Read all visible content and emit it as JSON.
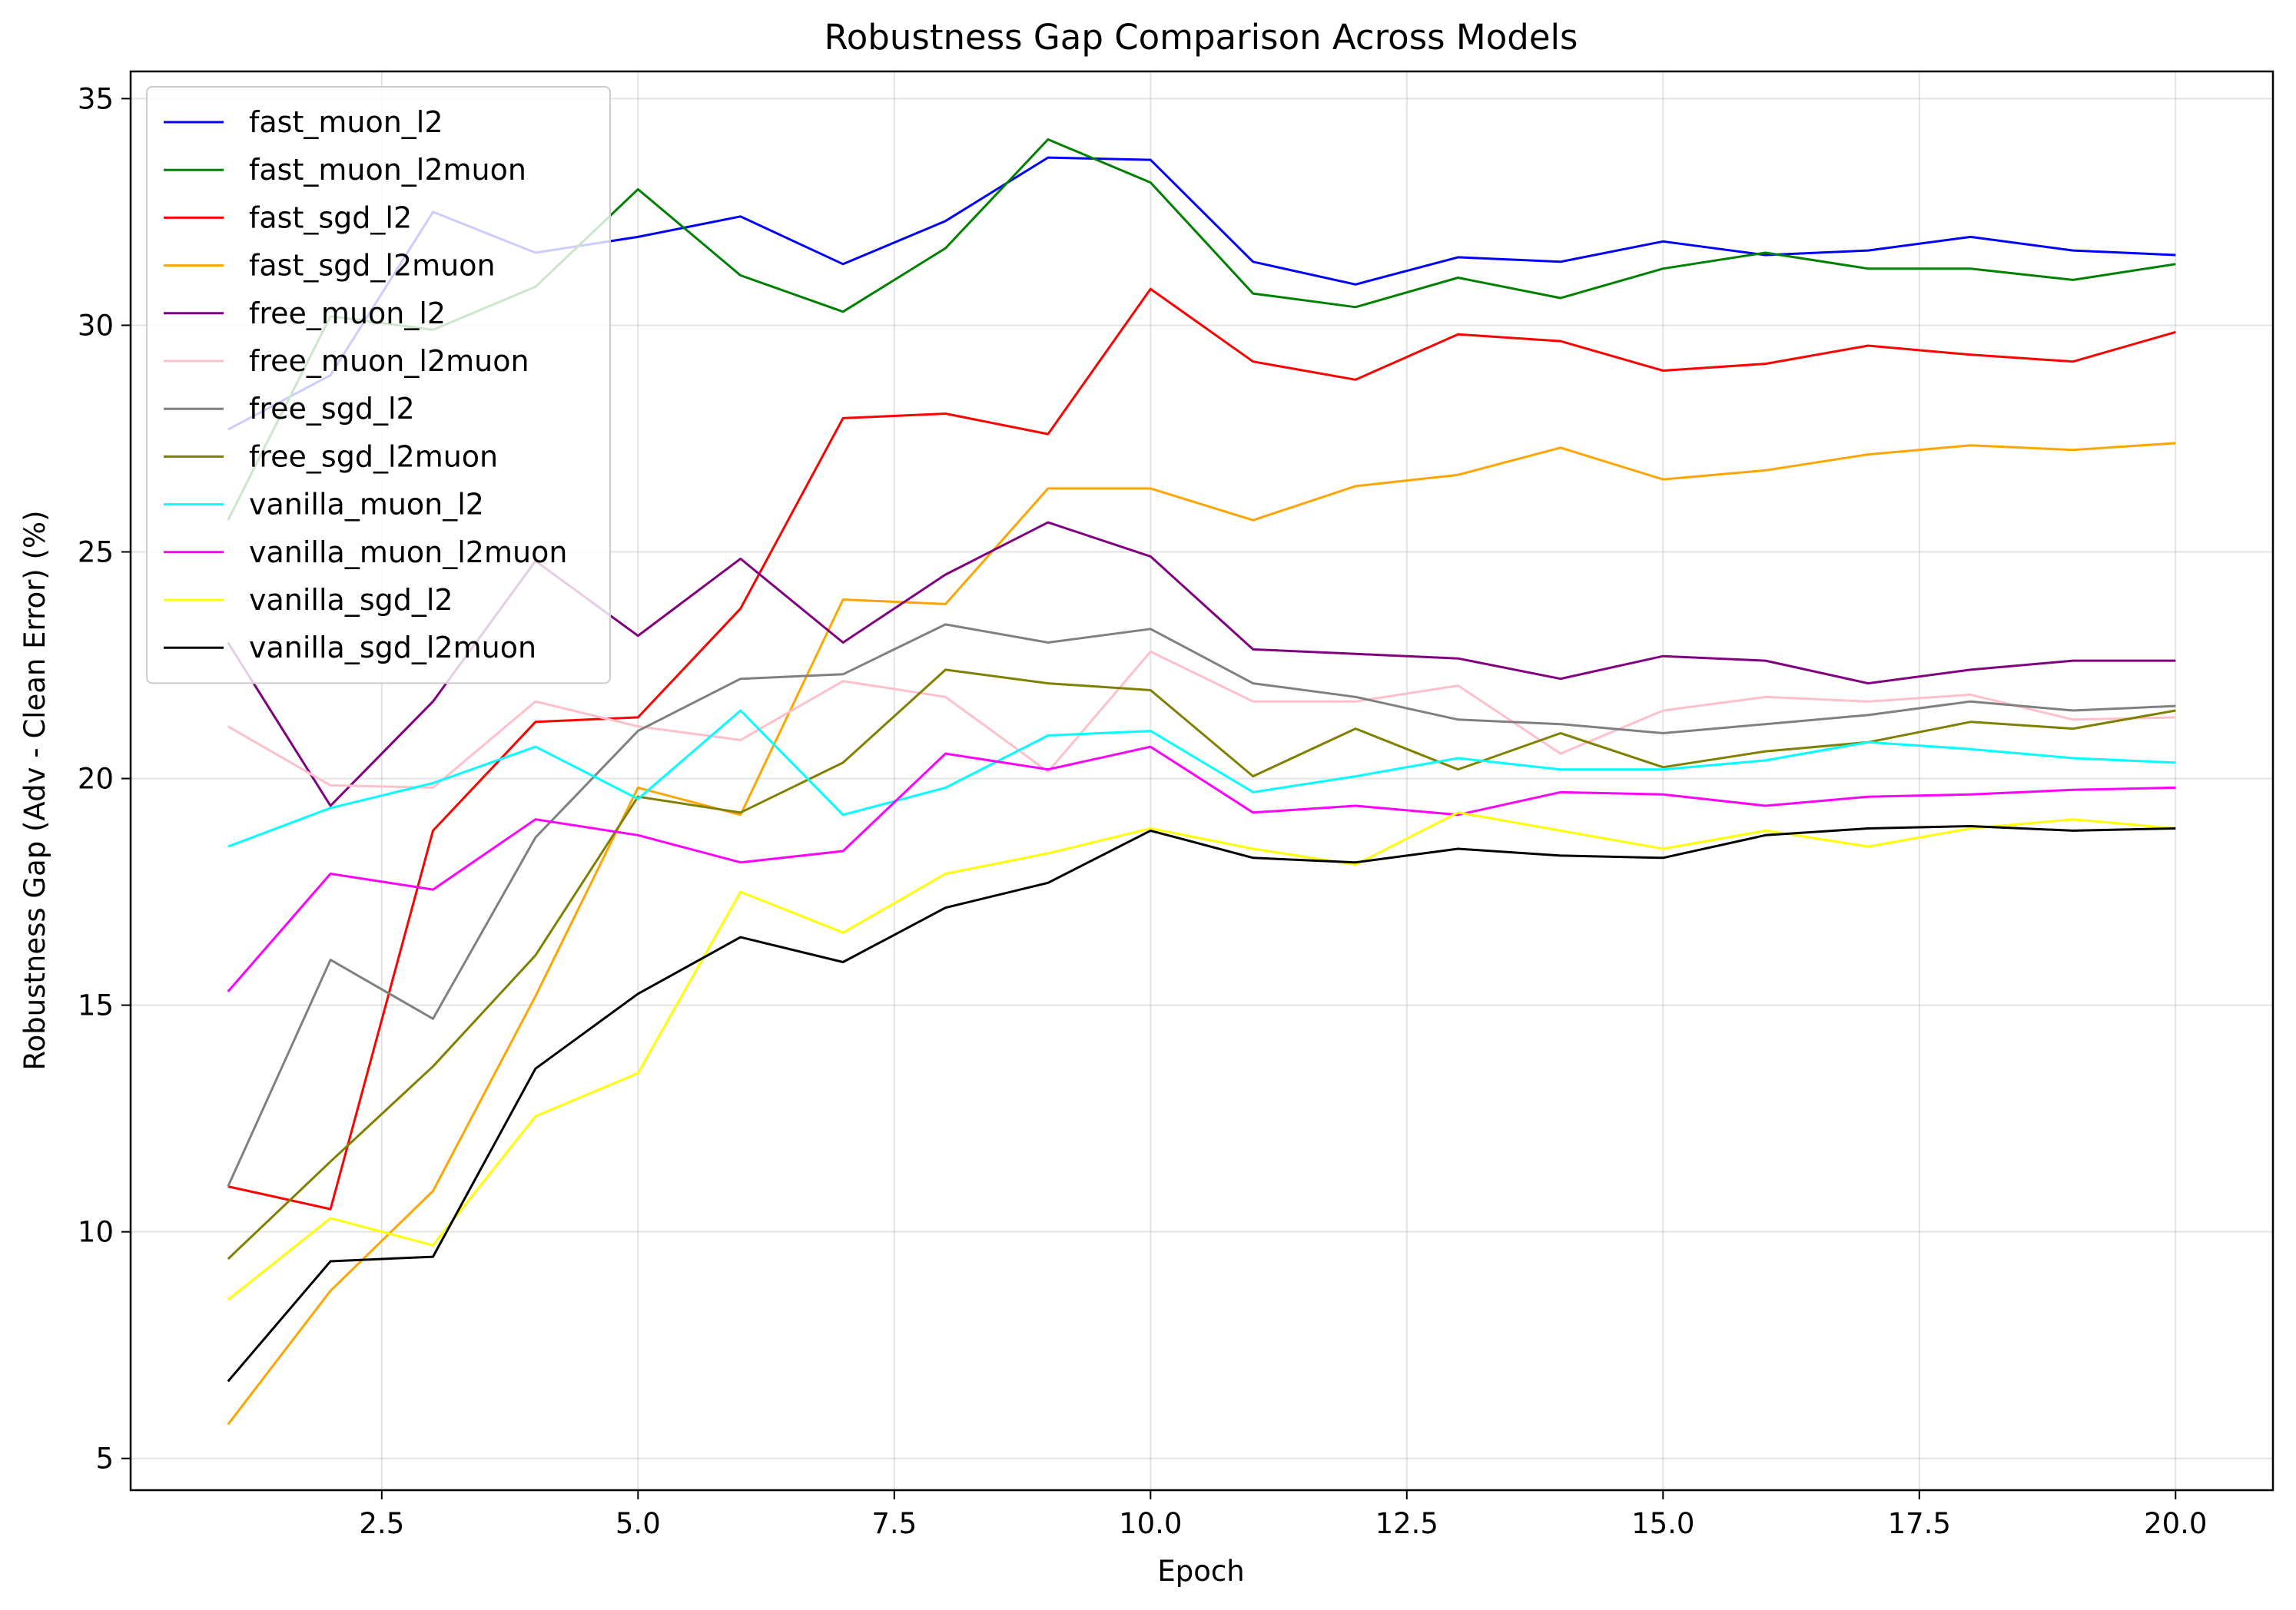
{
  "chart_data": {
    "type": "line",
    "title": "Robustness Gap Comparison Across Models",
    "xlabel": "Epoch",
    "ylabel": "Robustness Gap (Adv - Clean Error) (%)",
    "xlim": [
      0.05,
      20.95
    ],
    "ylim": [
      4.3,
      35.6
    ],
    "xticks": [
      2.5,
      5.0,
      7.5,
      10.0,
      12.5,
      15.0,
      17.5,
      20.0
    ],
    "xtick_labels": [
      "2.5",
      "5.0",
      "7.5",
      "10.0",
      "12.5",
      "15.0",
      "17.5",
      "20.0"
    ],
    "yticks": [
      5,
      10,
      15,
      20,
      25,
      30,
      35
    ],
    "ytick_labels": [
      "5",
      "10",
      "15",
      "20",
      "25",
      "30",
      "35"
    ],
    "grid": true,
    "legend_position": "upper-left",
    "x": [
      1,
      2,
      3,
      4,
      5,
      6,
      7,
      8,
      9,
      10,
      11,
      12,
      13,
      14,
      15,
      16,
      17,
      18,
      19,
      20
    ],
    "series": [
      {
        "name": "fast_muon_l2",
        "color": "#0000ff",
        "values": [
          27.7,
          28.9,
          32.5,
          31.6,
          31.95,
          32.4,
          31.35,
          32.3,
          33.7,
          33.65,
          31.4,
          30.9,
          31.5,
          31.4,
          31.85,
          31.55,
          31.65,
          31.95,
          31.65,
          31.55
        ]
      },
      {
        "name": "fast_muon_l2muon",
        "color": "#008000",
        "values": [
          25.7,
          30.2,
          29.9,
          30.85,
          33.0,
          31.1,
          30.3,
          31.7,
          34.1,
          33.15,
          30.7,
          30.4,
          31.05,
          30.6,
          31.25,
          31.6,
          31.25,
          31.25,
          31.0,
          31.35
        ]
      },
      {
        "name": "fast_sgd_l2",
        "color": "#ff0000",
        "values": [
          11.0,
          10.5,
          18.85,
          21.25,
          21.35,
          23.75,
          27.95,
          28.05,
          27.6,
          30.8,
          29.2,
          28.8,
          29.8,
          29.65,
          29.0,
          29.15,
          29.55,
          29.35,
          29.2,
          29.85
        ]
      },
      {
        "name": "fast_sgd_l2muon",
        "color": "#ffa500",
        "values": [
          5.75,
          8.7,
          10.9,
          15.2,
          19.8,
          19.2,
          23.95,
          23.85,
          26.4,
          26.4,
          25.7,
          26.45,
          26.7,
          27.3,
          26.6,
          26.8,
          27.15,
          27.35,
          27.25,
          27.4
        ]
      },
      {
        "name": "free_muon_l2",
        "color": "#800080",
        "values": [
          23.0,
          19.4,
          21.7,
          24.8,
          23.15,
          24.85,
          23.0,
          24.5,
          25.65,
          24.9,
          22.85,
          22.75,
          22.65,
          22.2,
          22.7,
          22.6,
          22.1,
          22.4,
          22.6,
          22.6
        ]
      },
      {
        "name": "free_muon_l2muon",
        "color": "#ffc0cb",
        "values": [
          21.15,
          19.85,
          19.8,
          21.7,
          21.15,
          20.85,
          22.15,
          21.8,
          20.15,
          22.8,
          21.7,
          21.7,
          22.05,
          20.55,
          21.5,
          21.8,
          21.7,
          21.85,
          21.3,
          21.35
        ]
      },
      {
        "name": "free_sgd_l2",
        "color": "#808080",
        "values": [
          11.0,
          16.0,
          14.7,
          18.7,
          21.05,
          22.2,
          22.3,
          23.4,
          23.0,
          23.3,
          22.1,
          21.8,
          21.3,
          21.2,
          21.0,
          21.2,
          21.4,
          21.7,
          21.5,
          21.6
        ]
      },
      {
        "name": "free_sgd_l2muon",
        "color": "#808000",
        "values": [
          9.4,
          11.55,
          13.65,
          16.1,
          19.6,
          19.25,
          20.35,
          22.4,
          22.1,
          21.95,
          20.05,
          21.1,
          20.2,
          21.0,
          20.25,
          20.6,
          20.8,
          21.25,
          21.1,
          21.5
        ]
      },
      {
        "name": "vanilla_muon_l2",
        "color": "#00ffff",
        "values": [
          18.5,
          19.35,
          19.9,
          20.7,
          19.55,
          21.5,
          19.2,
          19.8,
          20.95,
          21.05,
          19.7,
          20.05,
          20.45,
          20.2,
          20.2,
          20.4,
          20.8,
          20.65,
          20.45,
          20.35
        ]
      },
      {
        "name": "vanilla_muon_l2muon",
        "color": "#ff00ff",
        "values": [
          15.3,
          17.9,
          17.55,
          19.1,
          18.75,
          18.15,
          18.4,
          20.55,
          20.2,
          20.7,
          19.25,
          19.4,
          19.2,
          19.7,
          19.65,
          19.4,
          19.6,
          19.65,
          19.75,
          19.8
        ]
      },
      {
        "name": "vanilla_sgd_l2",
        "color": "#ffff00",
        "values": [
          8.5,
          10.3,
          9.7,
          12.55,
          13.5,
          17.5,
          16.6,
          17.9,
          18.35,
          18.9,
          18.45,
          18.1,
          19.25,
          18.85,
          18.45,
          18.85,
          18.5,
          18.9,
          19.1,
          18.9
        ]
      },
      {
        "name": "vanilla_sgd_l2muon",
        "color": "#000000",
        "values": [
          6.7,
          9.35,
          9.45,
          13.6,
          15.25,
          16.5,
          15.95,
          17.15,
          17.7,
          18.85,
          18.25,
          18.15,
          18.45,
          18.3,
          18.25,
          18.75,
          18.9,
          18.95,
          18.85,
          18.9
        ]
      }
    ]
  }
}
